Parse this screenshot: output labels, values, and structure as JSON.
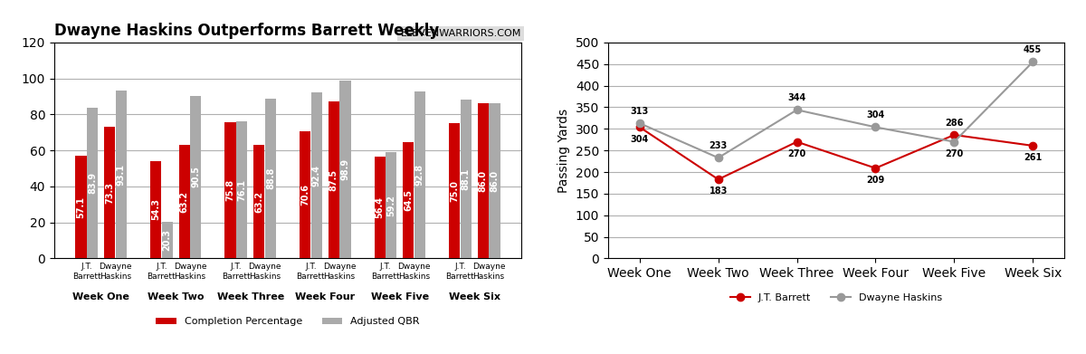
{
  "chart_data": [
    {
      "type": "bar",
      "title": "Dwayne Haskins Outperforms Barrett Weekly",
      "annotations": [
        "ELEVENWARRIORS.COM"
      ],
      "categories": [
        "J.T.\nBarrett",
        "Dwayne\nHaskins",
        "J.T.\nBarrett",
        "Dwayne\nHaskins",
        "J.T.\nBarrett",
        "Dwayne\nHaskins",
        "J.T.\nBarrett",
        "Dwayne\nHaskins",
        "J.T.\nBarrett",
        "Dwayne\nHaskins",
        "J.T.\nBarrett",
        "Dwayne\nHaskins"
      ],
      "groups": [
        "Week One",
        "Week Two",
        "Week Three",
        "Week Four",
        "Week Five",
        "Week Six"
      ],
      "series": [
        {
          "name": "Completion Percentage",
          "color": "#CC0000",
          "values": [
            57.1,
            73.3,
            54.3,
            63.2,
            75.8,
            63.2,
            70.6,
            87.5,
            56.4,
            64.5,
            75.0,
            86.0
          ]
        },
        {
          "name": "Adjusted QBR",
          "color": "#AAAAAA",
          "values": [
            83.9,
            93.1,
            20.3,
            90.5,
            76.1,
            88.8,
            92.4,
            98.9,
            59.2,
            92.8,
            88.1,
            86.0
          ]
        }
      ],
      "ylim": [
        0,
        120
      ],
      "yticks": [
        0,
        20,
        40,
        60,
        80,
        100,
        120
      ],
      "grid": true,
      "legend": "upper center",
      "data_labels": true
    },
    {
      "type": "line",
      "categories": [
        "Week One",
        "Week Two",
        "Week Three",
        "Week Four",
        "Week Five",
        "Week Six"
      ],
      "series": [
        {
          "name": "J.T. Barrett",
          "color": "#CC0000",
          "marker": "o",
          "values": [
            304,
            183,
            270,
            209,
            286,
            261
          ]
        },
        {
          "name": "Dwayne Haskins",
          "color": "#999999",
          "marker": "o",
          "values": [
            313,
            233,
            344,
            304,
            270,
            455
          ]
        }
      ],
      "ylabel": "Passing Yards",
      "ylim": [
        0,
        500
      ],
      "yticks": [
        0,
        50,
        100,
        150,
        200,
        250,
        300,
        350,
        400,
        450,
        500
      ],
      "grid": true,
      "legend": "upper center",
      "data_labels": true
    }
  ]
}
